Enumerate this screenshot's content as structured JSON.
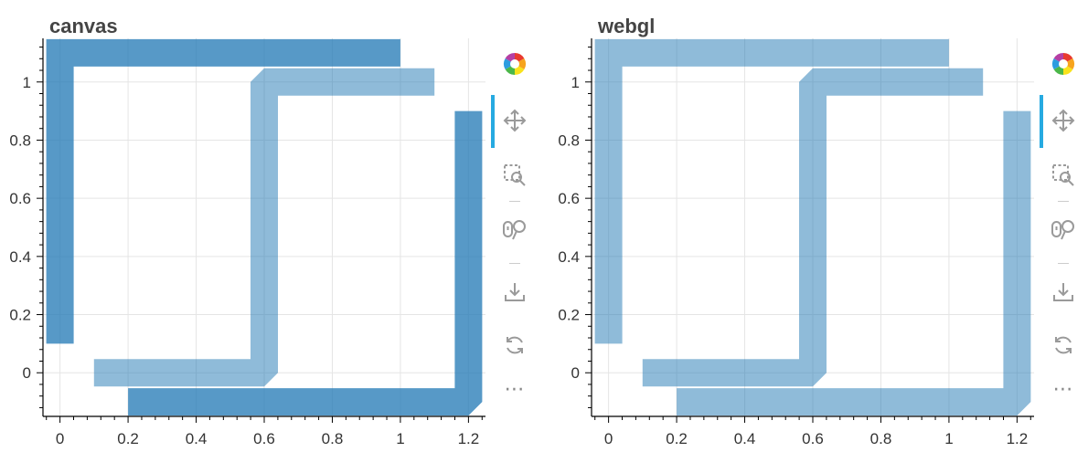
{
  "panels": [
    {
      "title": "canvas"
    },
    {
      "title": "webgl"
    }
  ],
  "toolbar": {
    "tools": [
      "bokeh-logo-icon",
      "pan-icon",
      "box-zoom-icon",
      "wheel-zoom-icon",
      "save-icon",
      "reset-icon",
      "more-icon"
    ],
    "more_label": "⋯"
  },
  "chart_data": [
    {
      "type": "line",
      "title": "canvas",
      "xlim": [
        -0.05,
        1.25
      ],
      "ylim": [
        -0.15,
        1.15
      ],
      "x_ticks": [
        0,
        0.2,
        0.4,
        0.6,
        0.8,
        1,
        1.2
      ],
      "x_tick_labels": [
        "0",
        "0.2",
        "0.4",
        "0.6",
        "0.8",
        "1",
        "1.2"
      ],
      "y_ticks": [
        0,
        0.2,
        0.4,
        0.6,
        0.8,
        1
      ],
      "y_tick_labels": [
        "0",
        "0.2",
        "0.4",
        "0.6",
        "0.8",
        "1"
      ],
      "grid": true,
      "series": [
        {
          "x": [
            0,
            0,
            1
          ],
          "y": [
            0.1,
            1.1,
            1.1
          ],
          "color": "#1f77b4",
          "alpha": 0.75,
          "line_join": "miter",
          "line_cap": "butt"
        },
        {
          "x": [
            0.1,
            0.6,
            0.6,
            1.1
          ],
          "y": [
            0,
            0,
            1,
            1
          ],
          "color": "#1f77b4",
          "alpha": 0.5,
          "line_join": "bevel",
          "line_cap": "butt"
        },
        {
          "x": [
            0.2,
            1.2,
            1.2
          ],
          "y": [
            -0.1,
            -0.1,
            0.9
          ],
          "color": "#1f77b4",
          "alpha": 0.75,
          "line_join": "bevel",
          "line_cap": "butt"
        }
      ]
    },
    {
      "type": "line",
      "title": "webgl",
      "xlim": [
        -0.05,
        1.25
      ],
      "ylim": [
        -0.15,
        1.15
      ],
      "x_ticks": [
        0,
        0.2,
        0.4,
        0.6,
        0.8,
        1,
        1.2
      ],
      "x_tick_labels": [
        "0",
        "0.2",
        "0.4",
        "0.6",
        "0.8",
        "1",
        "1.2"
      ],
      "y_ticks": [
        0,
        0.2,
        0.4,
        0.6,
        0.8,
        1
      ],
      "y_tick_labels": [
        "0",
        "0.2",
        "0.4",
        "0.6",
        "0.8",
        "1"
      ],
      "grid": true,
      "series": [
        {
          "x": [
            0,
            0,
            1
          ],
          "y": [
            0.1,
            1.1,
            1.1
          ],
          "color": "#1f77b4",
          "alpha": 0.5,
          "line_join": "miter",
          "line_cap": "butt"
        },
        {
          "x": [
            0.1,
            0.6,
            0.6,
            1.1
          ],
          "y": [
            0,
            0,
            1,
            1
          ],
          "color": "#1f77b4",
          "alpha": 0.5,
          "line_join": "bevel",
          "line_cap": "butt"
        },
        {
          "x": [
            0.2,
            1.2,
            1.2
          ],
          "y": [
            -0.1,
            -0.1,
            0.9
          ],
          "color": "#1f77b4",
          "alpha": 0.5,
          "line_join": "bevel",
          "line_cap": "butt"
        }
      ]
    }
  ]
}
